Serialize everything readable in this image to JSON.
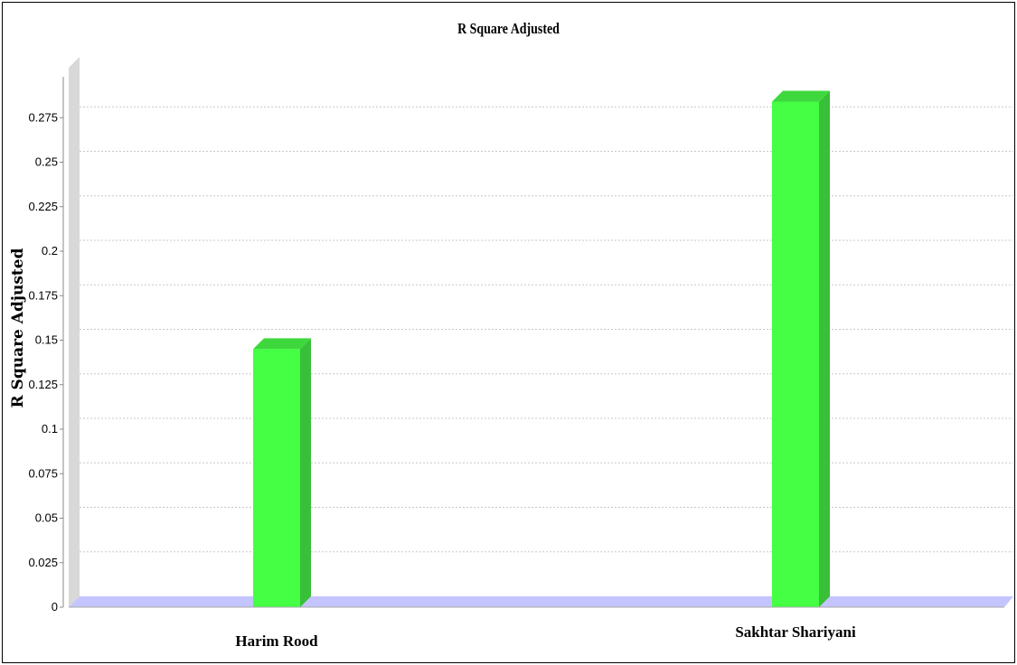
{
  "chart_data": {
    "type": "bar",
    "title": "R Square Adjusted",
    "xlabel": "",
    "ylabel": "R Square Adjusted",
    "categories": [
      "Harim Rood",
      "Sakhtar Shariyani"
    ],
    "values": [
      0.145,
      0.284
    ],
    "ylim": [
      0,
      0.29
    ],
    "yticks": [
      0,
      0.025,
      0.05,
      0.075,
      0.1,
      0.125,
      0.15,
      0.175,
      0.2,
      0.225,
      0.25,
      0.275
    ],
    "ytick_labels": [
      "0",
      "0.025",
      "0.05",
      "0.075",
      "0.1",
      "0.125",
      "0.15",
      "0.175",
      "0.2",
      "0.225",
      "0.25",
      "0.275"
    ],
    "grid": true,
    "legend": "none",
    "three_d": true,
    "colors": {
      "bar_front": "#44FF44",
      "bar_top": "#3ED83E",
      "bar_side": "#38C038",
      "floor": "#C4C4FF",
      "wall": "#D8D8D8",
      "grid": "#C8C8C8"
    }
  }
}
